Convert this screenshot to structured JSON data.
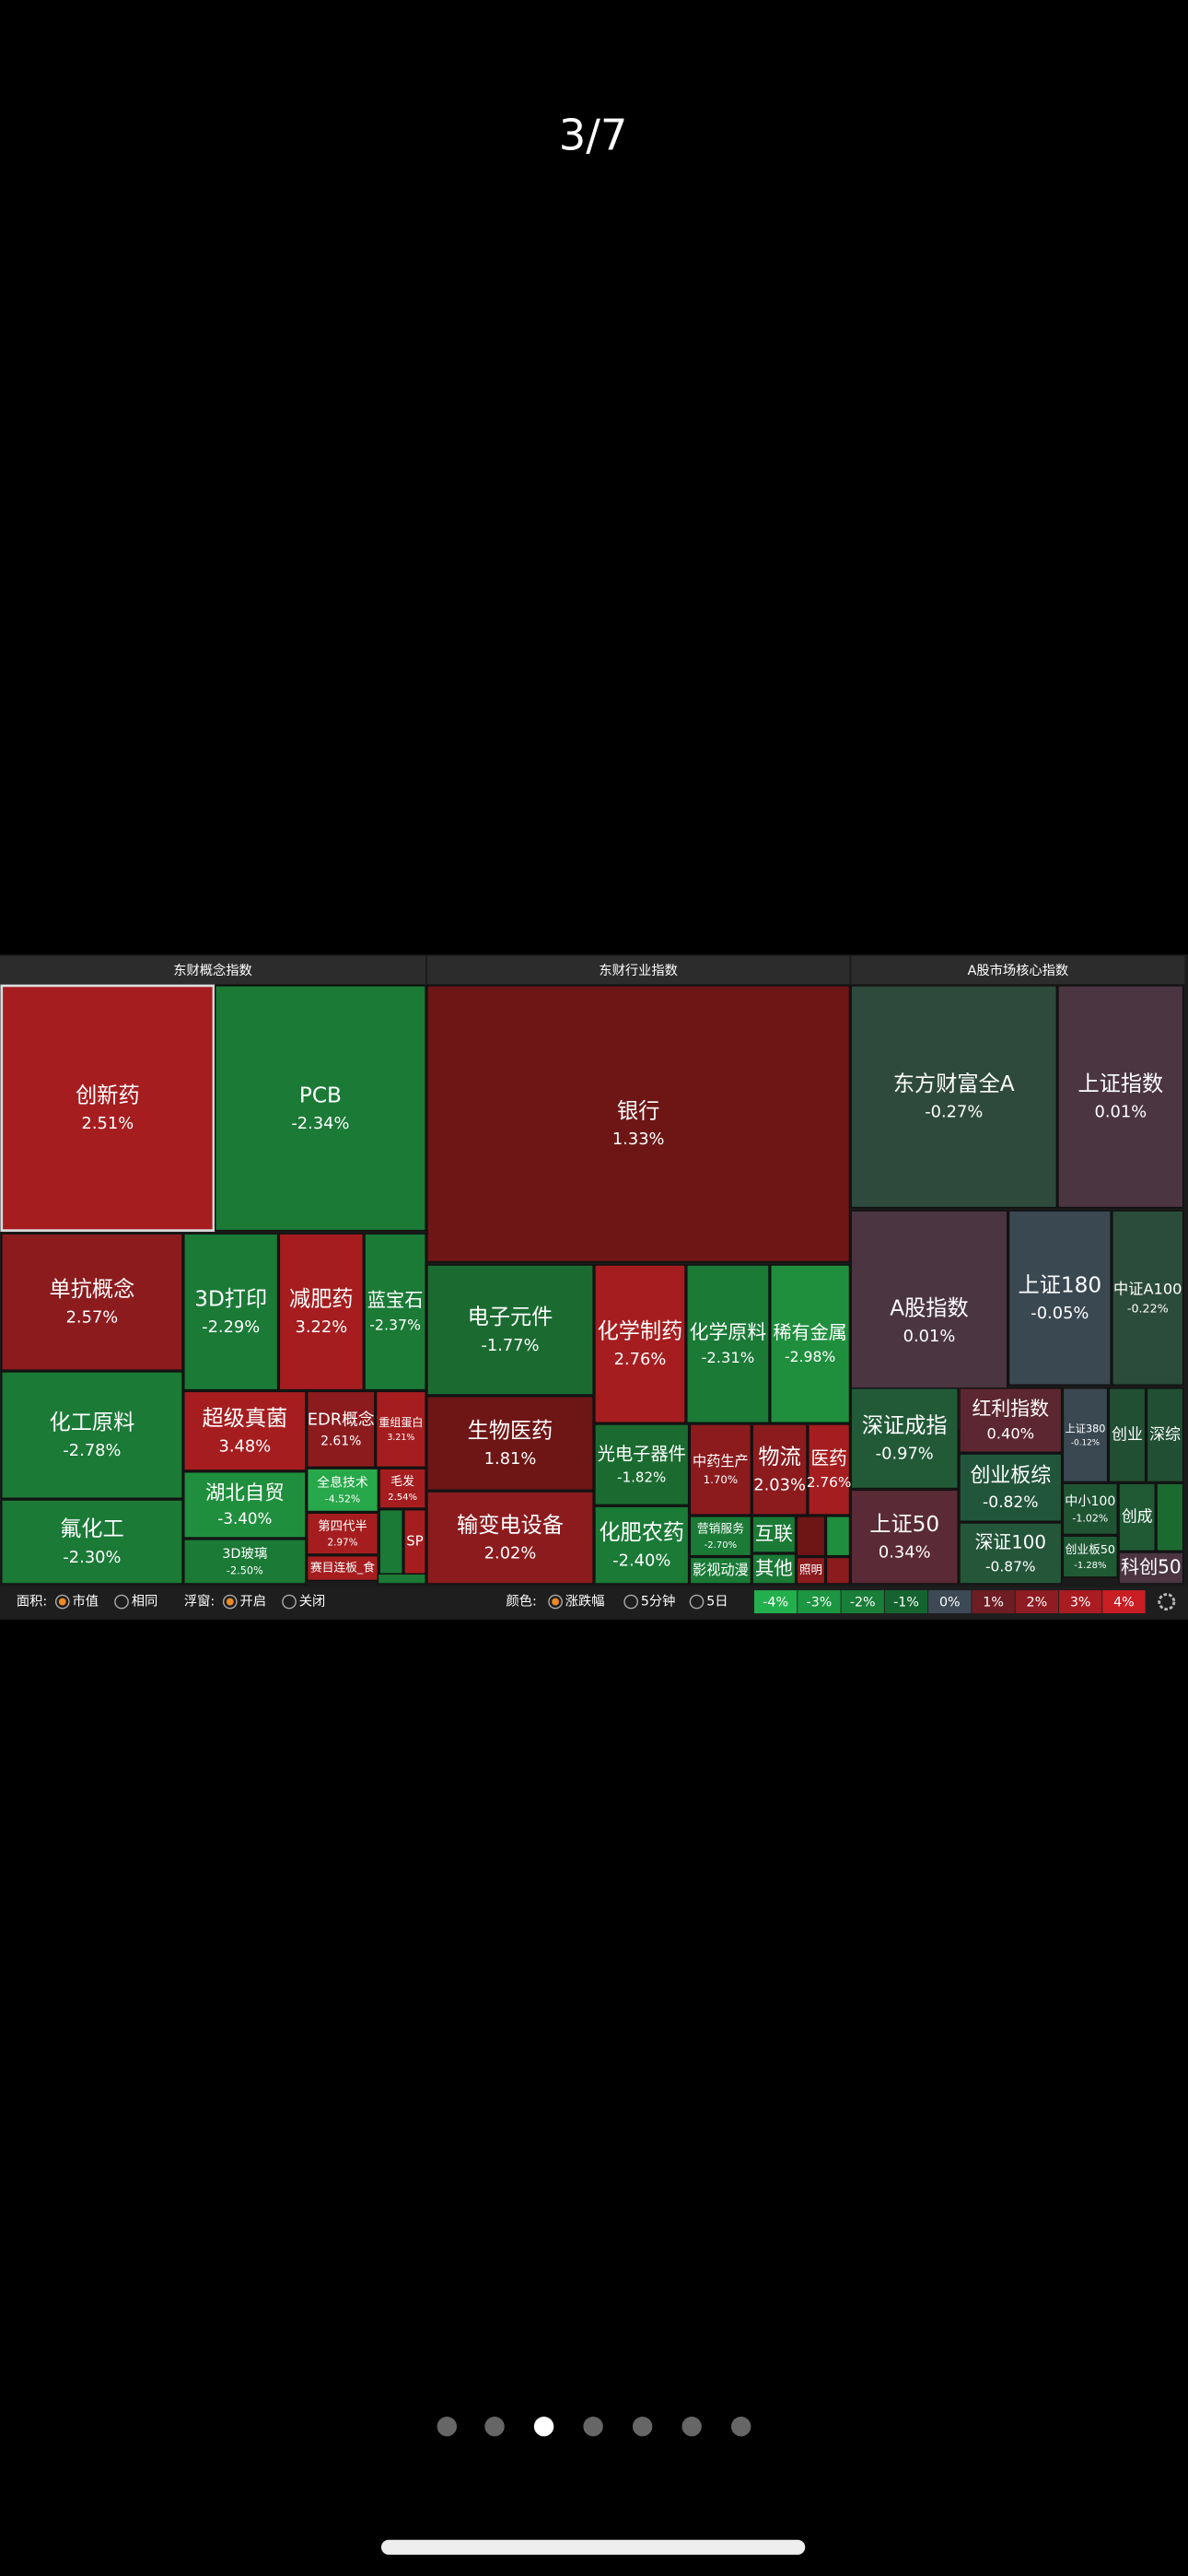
{
  "viewer": {
    "page_indicator": "3/7"
  },
  "panels": [
    {
      "title": "东财概念指数",
      "tiles": [
        {
          "name": "创新药",
          "change": "2.51%"
        },
        {
          "name": "PCB",
          "change": "-2.34%"
        },
        {
          "name": "单抗概念",
          "change": "2.57%"
        },
        {
          "name": "3D打印",
          "change": "-2.29%"
        },
        {
          "name": "减肥药",
          "change": "3.22%"
        },
        {
          "name": "蓝宝石",
          "change": "-2.37%"
        },
        {
          "name": "化工原料",
          "change": "-2.78%"
        },
        {
          "name": "氟化工",
          "change": "-2.30%"
        },
        {
          "name": "超级真菌",
          "change": "3.48%"
        },
        {
          "name": "EDR概念",
          "change": "2.61%"
        },
        {
          "name": "重组蛋白",
          "change": "3.21%"
        },
        {
          "name": "湖北自贸",
          "change": "-3.40%"
        },
        {
          "name": "3D玻璃",
          "change": "-2.50%"
        },
        {
          "name": "全息技术",
          "change": "-4.52%"
        },
        {
          "name": "毛发",
          "change": "2.54%"
        },
        {
          "name": "第四代半",
          "change": "2.97%"
        },
        {
          "name": "赛目连板_食"
        },
        {
          "name": "SP"
        }
      ]
    },
    {
      "title": "东财行业指数",
      "tiles": [
        {
          "name": "银行",
          "change": "1.33%"
        },
        {
          "name": "电子元件",
          "change": "-1.77%"
        },
        {
          "name": "化学制药",
          "change": "2.76%"
        },
        {
          "name": "化学原料",
          "change": "-2.31%"
        },
        {
          "name": "稀有金属",
          "change": "-2.98%"
        },
        {
          "name": "生物医药",
          "change": "1.81%"
        },
        {
          "name": "输变电设备",
          "change": "2.02%"
        },
        {
          "name": "光电子器件",
          "change": "-1.82%"
        },
        {
          "name": "化肥农药",
          "change": "-2.40%"
        },
        {
          "name": "中药生产",
          "change": "1.70%"
        },
        {
          "name": "物流",
          "change": "2.03%"
        },
        {
          "name": "医药",
          "change": "2.76%"
        },
        {
          "name": "营销服务",
          "change": "-2.70%"
        },
        {
          "name": "影视动漫"
        },
        {
          "name": "互联"
        },
        {
          "name": "其他"
        },
        {
          "name": "照明"
        }
      ]
    },
    {
      "title": "A股市场核心指数",
      "tiles": [
        {
          "name": "东方财富全A",
          "change": "-0.27%"
        },
        {
          "name": "上证指数",
          "change": "0.01%"
        },
        {
          "name": "A股指数",
          "change": "0.01%"
        },
        {
          "name": "上证180",
          "change": "-0.05%"
        },
        {
          "name": "中证A100",
          "change": "-0.22%"
        },
        {
          "name": "深证成指",
          "change": "-0.97%"
        },
        {
          "name": "红利指数",
          "change": "0.40%"
        },
        {
          "name": "上证380",
          "change": "-0.12%"
        },
        {
          "name": "创业"
        },
        {
          "name": "深综"
        },
        {
          "name": "创业板综",
          "change": "-0.82%"
        },
        {
          "name": "上证50",
          "change": "0.34%"
        },
        {
          "name": "深证100",
          "change": "-0.87%"
        },
        {
          "name": "中小100",
          "change": "-1.02%"
        },
        {
          "name": "创成"
        },
        {
          "name": "创业板50",
          "change": "-1.28%"
        },
        {
          "name": "科创50"
        }
      ]
    }
  ],
  "toolbar": {
    "groups": [
      {
        "label": "面积:",
        "options": [
          "市值",
          "相同"
        ]
      },
      {
        "label": "浮窗:",
        "options": [
          "开启",
          "关闭"
        ]
      },
      {
        "label": "颜色:",
        "options": [
          "涨跌幅",
          "5分钟",
          "5日"
        ]
      }
    ],
    "legend": [
      "-4%",
      "-3%",
      "-2%",
      "-1%",
      "0%",
      "1%",
      "2%",
      "3%",
      "4%"
    ]
  }
}
